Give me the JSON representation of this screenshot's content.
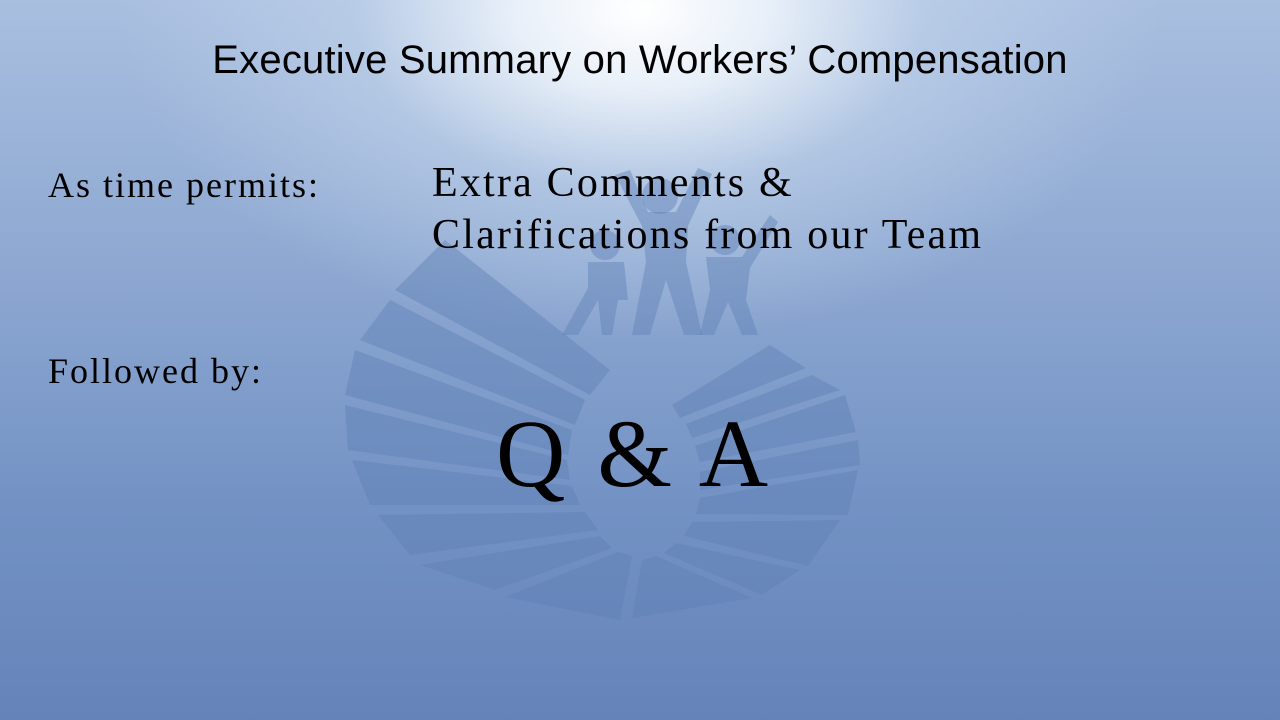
{
  "slide": {
    "title": "Executive Summary on Workers’ Compensation",
    "time_label": "As time permits:",
    "extra_line1": "Extra Comments &",
    "extra_line2": "Clarifications from our Team",
    "followed_label": "Followed by:",
    "qa_text": "Q & A"
  },
  "watermark": {
    "icon": "people-circle-logo-icon"
  },
  "colors": {
    "background_light": "#ffffff",
    "background_mid": "#8fa9d2",
    "background_dark": "#6583b8",
    "watermark": "#5f80b6",
    "text": "#000000"
  }
}
